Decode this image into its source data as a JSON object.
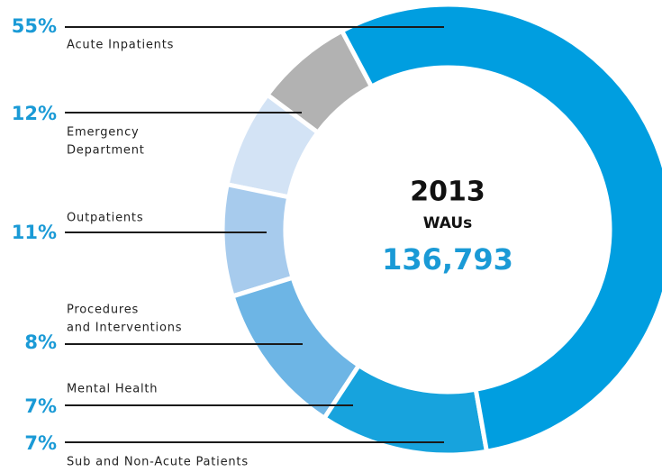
{
  "chart_data": {
    "type": "donut",
    "categories": [
      [
        "Acute Inpatients"
      ],
      [
        "Emergency",
        "Department"
      ],
      [
        "Outpatients"
      ],
      [
        "Procedures",
        "and Interventions"
      ],
      [
        "Mental Health"
      ],
      [
        "Sub and Non-Acute Patients"
      ]
    ],
    "values": [
      55,
      12,
      11,
      8,
      7,
      7
    ],
    "value_labels": [
      "55%",
      "12%",
      "11%",
      "8%",
      "7%",
      "7%"
    ],
    "colors": [
      "#009ee0",
      "#17a3dd",
      "#6db5e5",
      "#a7cbed",
      "#d3e3f5",
      "#b2b2b2"
    ],
    "center": {
      "year": "2013",
      "label": "WAUs",
      "total": "136,793"
    }
  }
}
